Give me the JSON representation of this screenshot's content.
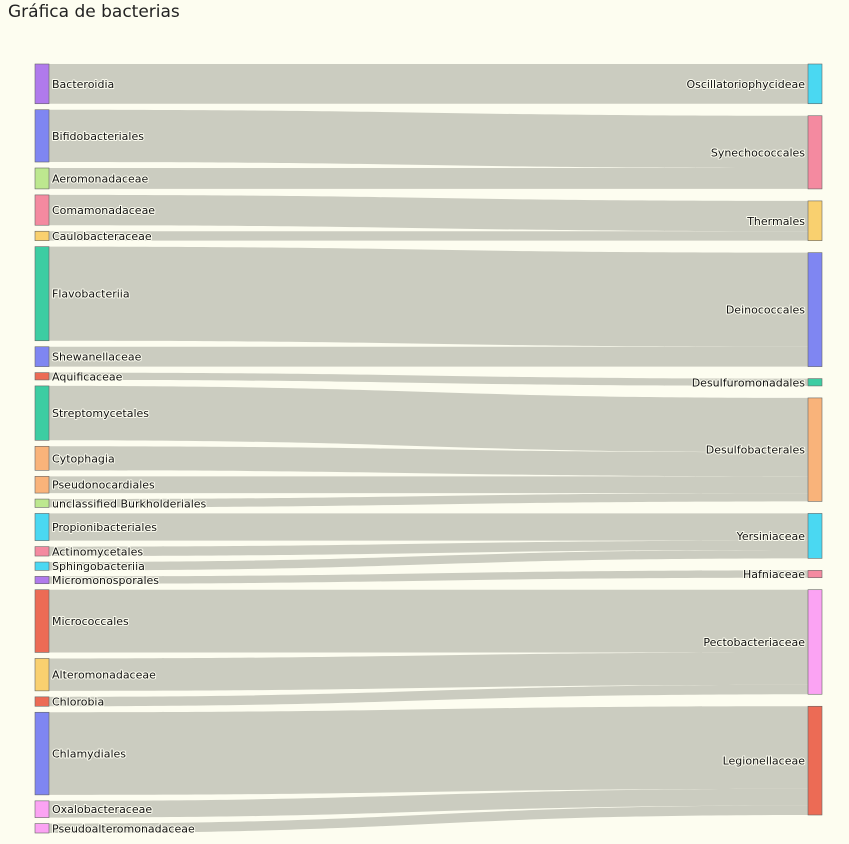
{
  "title": "Gráfica de bacterias",
  "chart_data": {
    "type": "sankey",
    "sources": [
      {
        "name": "Bacteroidia",
        "color": "#b07aec"
      },
      {
        "name": "Bifidobacteriales",
        "color": "#7f86f2"
      },
      {
        "name": "Aeromonadaceae",
        "color": "#bde88f"
      },
      {
        "name": "Comamonadaceae",
        "color": "#f48aa0"
      },
      {
        "name": "Caulobacteraceae",
        "color": "#f9d06f"
      },
      {
        "name": "Flavobacteriia",
        "color": "#3dcda2"
      },
      {
        "name": "Shewanellaceae",
        "color": "#7f86f2"
      },
      {
        "name": "Aquificaceae",
        "color": "#ec6b55"
      },
      {
        "name": "Streptomycetales",
        "color": "#3dcda2"
      },
      {
        "name": "Cytophagia",
        "color": "#f9b37a"
      },
      {
        "name": "Pseudonocardiales",
        "color": "#f9b37a"
      },
      {
        "name": "unclassified Burkholderiales",
        "color": "#bde88f"
      },
      {
        "name": "Propionibacteriales",
        "color": "#4ad8f2"
      },
      {
        "name": "Actinomycetales",
        "color": "#f48aa0"
      },
      {
        "name": "Sphingobacteriia",
        "color": "#4ad8f2"
      },
      {
        "name": "Micromonosporales",
        "color": "#b07aec"
      },
      {
        "name": "Micrococcales",
        "color": "#ec6b55"
      },
      {
        "name": "Alteromonadaceae",
        "color": "#f9d06f"
      },
      {
        "name": "Chlorobia",
        "color": "#ec6b55"
      },
      {
        "name": "Chlamydiales",
        "color": "#7f86f2"
      },
      {
        "name": "Oxalobacteraceae",
        "color": "#fba3f3"
      },
      {
        "name": "Pseudoalteromonadaceae",
        "color": "#fba3f3"
      }
    ],
    "targets": [
      {
        "name": "Oscillatoriophycideae",
        "color": "#4ad8f2"
      },
      {
        "name": "Synechococcales",
        "color": "#f48aa0"
      },
      {
        "name": "Thermales",
        "color": "#f9d06f"
      },
      {
        "name": "Deinococcales",
        "color": "#7f86f2"
      },
      {
        "name": "Desulfuromonadales",
        "color": "#3dcda2"
      },
      {
        "name": "Desulfobacterales",
        "color": "#f9b37a"
      },
      {
        "name": "Yersiniaceae",
        "color": "#4ad8f2"
      },
      {
        "name": "Hafniaceae",
        "color": "#f48aa0"
      },
      {
        "name": "Pectobacteriaceae",
        "color": "#fba3f3"
      },
      {
        "name": "Legionellaceae",
        "color": "#ec6b55"
      }
    ],
    "links": [
      {
        "source": "Bacteroidia",
        "target": "Oscillatoriophycideae",
        "value": 38
      },
      {
        "source": "Bifidobacteriales",
        "target": "Synechococcales",
        "value": 50
      },
      {
        "source": "Aeromonadaceae",
        "target": "Synechococcales",
        "value": 20
      },
      {
        "source": "Comamonadaceae",
        "target": "Thermales",
        "value": 29
      },
      {
        "source": "Caulobacteraceae",
        "target": "Thermales",
        "value": 9
      },
      {
        "source": "Flavobacteriia",
        "target": "Deinococcales",
        "value": 90
      },
      {
        "source": "Shewanellaceae",
        "target": "Deinococcales",
        "value": 19
      },
      {
        "source": "Aquificaceae",
        "target": "Desulfuromonadales",
        "value": 7
      },
      {
        "source": "Streptomycetales",
        "target": "Desulfobacterales",
        "value": 52
      },
      {
        "source": "Cytophagia",
        "target": "Desulfobacterales",
        "value": 23
      },
      {
        "source": "Pseudonocardiales",
        "target": "Desulfobacterales",
        "value": 16
      },
      {
        "source": "unclassified Burkholderiales",
        "target": "Desulfobacterales",
        "value": 8
      },
      {
        "source": "Propionibacteriales",
        "target": "Yersiniaceae",
        "value": 26
      },
      {
        "source": "Actinomycetales",
        "target": "Yersiniaceae",
        "value": 9
      },
      {
        "source": "Sphingobacteriia",
        "target": "Yersiniaceae",
        "value": 8
      },
      {
        "source": "Micromonosporales",
        "target": "Hafniaceae",
        "value": 7
      },
      {
        "source": "Micrococcales",
        "target": "Pectobacteriaceae",
        "value": 60
      },
      {
        "source": "Alteromonadaceae",
        "target": "Pectobacteriaceae",
        "value": 31
      },
      {
        "source": "Chlorobia",
        "target": "Pectobacteriaceae",
        "value": 9
      },
      {
        "source": "Chlamydiales",
        "target": "Legionellaceae",
        "value": 79
      },
      {
        "source": "Oxalobacteraceae",
        "target": "Legionellaceae",
        "value": 16
      },
      {
        "source": "Pseudoalteromonadaceae",
        "target": "Legionellaceae",
        "value": 9
      }
    ]
  }
}
